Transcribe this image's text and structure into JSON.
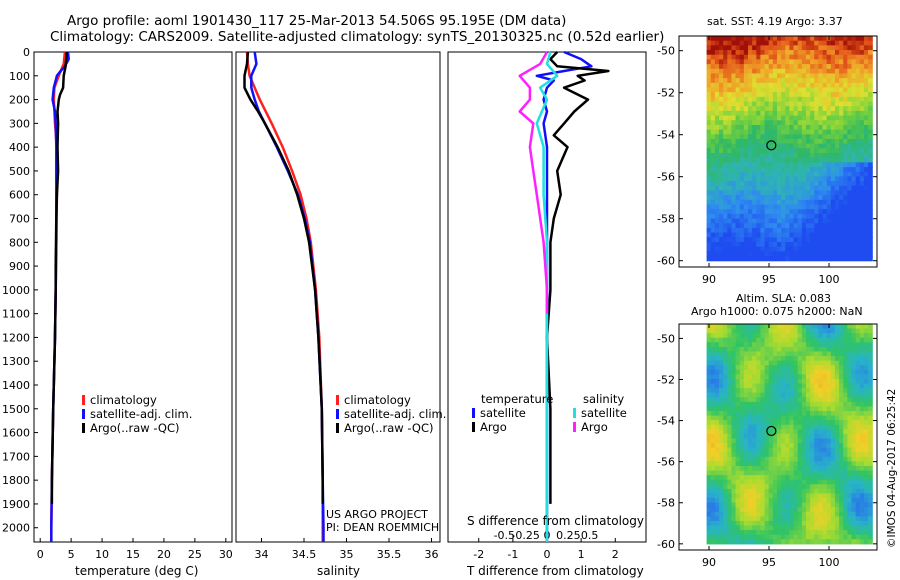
{
  "header": {
    "line1": "Argo profile: aoml 1901430_117 25-Mar-2013 54.506S 95.195E (DM data)",
    "line2": "Climatology: CARS2009. Satellite-adjusted climatology: synTS_20130325.nc (0.52d earlier)"
  },
  "colors": {
    "climatology": "#ff2020",
    "satellite": "#1010ff",
    "argo": "#000000",
    "satellite_s": "#20e0e0",
    "argo_s": "#ff20ff"
  },
  "depth_axis": {
    "ticks": [
      0,
      100,
      200,
      300,
      400,
      500,
      600,
      700,
      800,
      900,
      1000,
      1100,
      1200,
      1300,
      1400,
      1500,
      1600,
      1700,
      1800,
      1900,
      2000
    ],
    "range": [
      0,
      2060
    ]
  },
  "chart_data": [
    {
      "type": "line",
      "id": "temperature",
      "xlabel": "temperature (deg C)",
      "xlim": [
        -1,
        31
      ],
      "xticks": [
        0,
        5,
        10,
        15,
        20,
        25,
        30
      ],
      "ylim": [
        2060,
        0
      ],
      "legend": [
        "climatology",
        "satellite-adj. clim.",
        "Argo(..raw -QC)"
      ],
      "series": [
        {
          "name": "climatology",
          "color": "#ff2020",
          "depth": [
            0,
            50,
            100,
            150,
            200,
            300,
            400,
            600,
            800,
            1000,
            1200,
            1500,
            1800,
            2000,
            2060
          ],
          "values": [
            4.0,
            3.8,
            3.0,
            2.3,
            2.2,
            2.4,
            2.7,
            2.7,
            2.6,
            2.5,
            2.4,
            2.1,
            1.9,
            1.8,
            1.8
          ]
        },
        {
          "name": "satellite-adj. clim.",
          "color": "#1010ff",
          "depth": [
            0,
            30,
            60,
            80,
            100,
            150,
            200,
            250,
            300,
            400,
            600,
            800,
            1000,
            1200,
            1500,
            1800,
            2000,
            2060
          ],
          "values": [
            4.5,
            4.6,
            4.0,
            3.3,
            2.7,
            2.2,
            2.0,
            2.4,
            2.5,
            2.6,
            2.6,
            2.6,
            2.5,
            2.4,
            2.1,
            1.9,
            1.8,
            1.8
          ]
        },
        {
          "name": "Argo(..raw -QC)",
          "color": "#000000",
          "depth": [
            0,
            30,
            60,
            100,
            150,
            180,
            200,
            250,
            300,
            400,
            500,
            600,
            700,
            900,
            1000,
            1200,
            1500,
            1800,
            1900
          ],
          "values": [
            4.3,
            4.2,
            4.1,
            3.8,
            3.7,
            3.2,
            3.0,
            2.8,
            2.9,
            2.8,
            2.9,
            2.7,
            2.6,
            2.5,
            2.5,
            2.4,
            2.1,
            1.9,
            1.9
          ]
        }
      ]
    },
    {
      "type": "line",
      "id": "salinity",
      "xlabel": "salinity",
      "xlim": [
        33.7,
        36.1
      ],
      "xticks": [
        34,
        34.5,
        35,
        35.5,
        36
      ],
      "ylim": [
        2060,
        0
      ],
      "legend": [
        "climatology",
        "satellite-adj. clim.",
        "Argo(..raw -QC)"
      ],
      "series": [
        {
          "name": "climatology",
          "color": "#ff2020",
          "depth": [
            0,
            50,
            100,
            150,
            200,
            300,
            400,
            500,
            600,
            700,
            800,
            1000,
            1200,
            1500,
            1800,
            2000,
            2060
          ],
          "values": [
            33.83,
            33.84,
            33.86,
            33.92,
            33.98,
            34.12,
            34.25,
            34.36,
            34.46,
            34.53,
            34.58,
            34.64,
            34.68,
            34.71,
            34.72,
            34.72,
            34.72
          ]
        },
        {
          "name": "satellite-adj. clim.",
          "color": "#1010ff",
          "depth": [
            0,
            50,
            100,
            150,
            200,
            250,
            300,
            400,
            500,
            600,
            700,
            800,
            1000,
            1200,
            1500,
            1800,
            2000,
            2060
          ],
          "values": [
            33.92,
            33.94,
            33.88,
            33.88,
            33.92,
            33.97,
            34.04,
            34.18,
            34.31,
            34.43,
            34.51,
            34.57,
            34.63,
            34.67,
            34.71,
            34.72,
            34.73,
            34.73
          ]
        },
        {
          "name": "Argo(..raw -QC)",
          "color": "#000000",
          "depth": [
            0,
            50,
            100,
            150,
            200,
            250,
            300,
            400,
            500,
            600,
            700,
            800,
            1000,
            1200,
            1500,
            1800,
            1900
          ],
          "values": [
            33.84,
            33.83,
            33.8,
            33.8,
            33.87,
            33.96,
            34.04,
            34.19,
            34.32,
            34.42,
            34.5,
            34.56,
            34.63,
            34.67,
            34.71,
            34.72,
            34.72
          ]
        }
      ],
      "credit": [
        "US ARGO PROJECT",
        "PI: DEAN ROEMMICH"
      ]
    },
    {
      "type": "line",
      "id": "difference",
      "xlabel": "T difference from climatology",
      "xlabel2": "S difference from climatology",
      "xlim": [
        -2.9,
        2.9
      ],
      "xticks": [
        -2,
        -1,
        0,
        1,
        2
      ],
      "xticks_s": [
        "-0.5",
        "-0.25",
        "0",
        "0.25",
        "0.5"
      ],
      "ylim": [
        2060,
        0
      ],
      "legend_t_title": "temperature",
      "legend_s_title": "salinity",
      "legend_t": [
        "satellite",
        "Argo"
      ],
      "legend_s": [
        "satellite",
        "Argo"
      ],
      "series": [
        {
          "name": "satellite T",
          "color": "#1010ff",
          "depth": [
            0,
            30,
            60,
            80,
            100,
            120,
            150,
            200,
            250,
            300,
            400,
            600,
            1000,
            1500,
            2000,
            2060
          ],
          "values": [
            0.5,
            1.0,
            1.3,
            0.5,
            -0.3,
            0.2,
            0.0,
            -0.1,
            0.0,
            -0.1,
            0.0,
            0.0,
            0.0,
            0.0,
            0.0,
            0.0
          ]
        },
        {
          "name": "Argo T",
          "color": "#000000",
          "depth": [
            0,
            30,
            60,
            80,
            100,
            120,
            150,
            200,
            250,
            300,
            350,
            400,
            500,
            600,
            700,
            800,
            1000,
            1200,
            1500,
            1800,
            1900
          ],
          "values": [
            0.3,
            0.1,
            0.3,
            1.8,
            0.9,
            1.1,
            0.5,
            1.2,
            0.8,
            0.5,
            0.2,
            0.6,
            0.3,
            0.4,
            0.2,
            0.1,
            0.1,
            0.0,
            0.1,
            0.1,
            0.1
          ]
        },
        {
          "name": "satellite S",
          "color": "#20e0e0",
          "depth": [
            0,
            50,
            100,
            150,
            200,
            300,
            400,
            600,
            800,
            1000,
            1200,
            1500,
            1800,
            2000,
            2060
          ],
          "values": [
            0.1,
            0.0,
            0.3,
            -0.2,
            0.0,
            -0.3,
            -0.1,
            -0.1,
            0.0,
            0.0,
            0.0,
            0.0,
            0.0,
            0.0,
            0.0
          ]
        },
        {
          "name": "Argo S",
          "color": "#ff20ff",
          "depth": [
            0,
            50,
            100,
            150,
            200,
            250,
            300,
            400,
            500,
            600,
            700,
            800,
            1000,
            1100
          ],
          "values": [
            0.0,
            -0.2,
            -0.8,
            -0.5,
            -0.5,
            -0.8,
            -0.4,
            -0.5,
            -0.4,
            -0.3,
            -0.2,
            -0.1,
            0.0,
            0.0
          ]
        }
      ]
    },
    {
      "type": "heatmap",
      "id": "sst_map",
      "title": "sat. SST: 4.19  Argo: 3.37",
      "xticks": [
        90,
        95,
        100
      ],
      "yticks": [
        -50,
        -52,
        -54,
        -56,
        -58,
        -60
      ],
      "xlim": [
        87.5,
        104
      ],
      "ylim": [
        -60.3,
        -49.3
      ],
      "profile_location": {
        "lon": 95.195,
        "lat": -54.506
      }
    },
    {
      "type": "heatmap",
      "id": "sla_map",
      "title1": "Altim. SLA: 0.083",
      "title2": "Argo h1000: 0.075  h2000: NaN",
      "xticks": [
        90,
        95,
        100
      ],
      "yticks": [
        -50,
        -52,
        -54,
        -56,
        -58,
        -60
      ],
      "xlim": [
        87.5,
        104
      ],
      "ylim": [
        -60.3,
        -49.3
      ],
      "profile_location": {
        "lon": 95.195,
        "lat": -54.506
      }
    }
  ],
  "footer": {
    "stamp": "©IMOS 04-Aug-2017 06:25:42"
  }
}
